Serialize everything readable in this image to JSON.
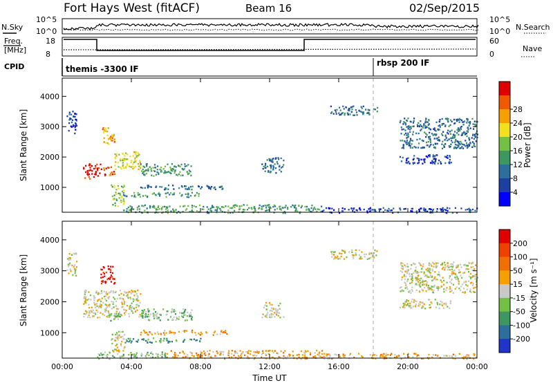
{
  "header": {
    "station": "Fort Hays West (fitACF)",
    "beam": "Beam 16",
    "date": "02/Sep/2015"
  },
  "summary": {
    "nsky_label": "N.Sky",
    "nsearch_label": "N.Search",
    "freq_label_line1": "Freq.",
    "freq_label_line2": "[MHz]",
    "nave_label": "Nave",
    "cpid_label": "CPID",
    "noise_ticks": [
      "10^5",
      "10^0"
    ],
    "freq_ticks": [
      "18",
      "8"
    ],
    "nave_ticks": [
      "60",
      "0"
    ],
    "cpid_segments": [
      {
        "label": "themis -3300 IF",
        "start_hour": 0
      },
      {
        "label": "rbsp 200 IF",
        "start_hour": 18
      }
    ]
  },
  "chart_data": [
    {
      "type": "heatmap",
      "name": "power",
      "xlabel": "",
      "ylabel": "Slant Range [km]",
      "xlim": [
        0,
        24
      ],
      "ylim": [
        180,
        4600
      ],
      "xticks": [
        0,
        4,
        8,
        12,
        16,
        20,
        24
      ],
      "yticks": [
        1000,
        2000,
        3000,
        4000
      ],
      "colorbar": {
        "label": "Power [dB]",
        "ticks": [
          "4",
          "8",
          "12",
          "16",
          "20",
          "24",
          "28"
        ],
        "colors": [
          "#0000ff",
          "#1c3fa0",
          "#2c6e9c",
          "#3f9660",
          "#74c045",
          "#f0e020",
          "#f6a000",
          "#ef5a00",
          "#e00000"
        ]
      },
      "regions": [
        {
          "h0": 0.25,
          "h1": 0.8,
          "r0": 2800,
          "r1": 3600,
          "level": 1
        },
        {
          "h0": 1.2,
          "h1": 2.2,
          "r0": 1300,
          "r1": 1800,
          "level": 8
        },
        {
          "h0": 2.2,
          "h1": 3.0,
          "r0": 1400,
          "r1": 1700,
          "level": 7
        },
        {
          "h0": 2.3,
          "h1": 3.0,
          "r0": 2400,
          "r1": 3000,
          "level": 6
        },
        {
          "h0": 3.0,
          "h1": 4.5,
          "r0": 1600,
          "r1": 2200,
          "level": 5
        },
        {
          "h0": 2.8,
          "h1": 3.6,
          "r0": 400,
          "r1": 1100,
          "level": 4
        },
        {
          "h0": 4.5,
          "h1": 7.5,
          "r0": 1400,
          "r1": 1800,
          "level": 3
        },
        {
          "h0": 4.5,
          "h1": 9.5,
          "r0": 950,
          "r1": 1100,
          "level": 2
        },
        {
          "h0": 3.5,
          "h1": 8.0,
          "r0": 700,
          "r1": 850,
          "level": 3
        },
        {
          "h0": 15.5,
          "h1": 18.2,
          "r0": 3400,
          "r1": 3700,
          "level": 2
        },
        {
          "h0": 19.5,
          "h1": 24.0,
          "r0": 2300,
          "r1": 3300,
          "level": 2
        },
        {
          "h0": 19.5,
          "h1": 22.5,
          "r0": 1800,
          "r1": 2100,
          "level": 1
        },
        {
          "h0": 11.5,
          "h1": 12.8,
          "r0": 1500,
          "r1": 2000,
          "level": 2
        },
        {
          "h0": 3.5,
          "h1": 15.0,
          "r0": 180,
          "r1": 450,
          "level": 3
        },
        {
          "h0": 15.0,
          "h1": 24.0,
          "r0": 180,
          "r1": 350,
          "level": 1
        }
      ]
    },
    {
      "type": "heatmap",
      "name": "velocity",
      "xlabel": "Time UT",
      "ylabel": "Slant Range [km]",
      "xlim": [
        0,
        24
      ],
      "ylim": [
        180,
        4600
      ],
      "xticks": [
        0,
        4,
        8,
        12,
        16,
        20,
        24
      ],
      "yticks": [
        1000,
        2000,
        3000,
        4000
      ],
      "colorbar": {
        "label": "Velocity [m s⁻¹]",
        "ticks": [
          "200",
          "100",
          "50",
          "15",
          "-15",
          "-50",
          "-100",
          "-200"
        ],
        "colors": [
          "#1f34c8",
          "#2c6e9c",
          "#3f9660",
          "#74c045",
          "#c8c8c8",
          "#f6a000",
          "#ef7000",
          "#ef4000",
          "#e00000"
        ]
      },
      "regions": [
        {
          "h0": 0.25,
          "h1": 0.8,
          "r0": 2800,
          "r1": 3600,
          "level": 4
        },
        {
          "h0": 2.2,
          "h1": 3.0,
          "r0": 2600,
          "r1": 3200,
          "level": 8
        },
        {
          "h0": 1.2,
          "h1": 4.5,
          "r0": 1500,
          "r1": 2400,
          "level": 4
        },
        {
          "h0": 2.6,
          "h1": 3.4,
          "r0": 1400,
          "r1": 1700,
          "level": 3
        },
        {
          "h0": 4.5,
          "h1": 7.5,
          "r0": 1400,
          "r1": 1800,
          "level": 3
        },
        {
          "h0": 4.5,
          "h1": 9.5,
          "r0": 950,
          "r1": 1100,
          "level": 5
        },
        {
          "h0": 3.5,
          "h1": 8.0,
          "r0": 700,
          "r1": 850,
          "level": 2
        },
        {
          "h0": 2.8,
          "h1": 3.6,
          "r0": 400,
          "r1": 1100,
          "level": 4
        },
        {
          "h0": 15.5,
          "h1": 18.2,
          "r0": 3400,
          "r1": 3700,
          "level": 4
        },
        {
          "h0": 19.5,
          "h1": 24.0,
          "r0": 2300,
          "r1": 3300,
          "level": 4
        },
        {
          "h0": 19.5,
          "h1": 22.5,
          "r0": 1800,
          "r1": 2100,
          "level": 4
        },
        {
          "h0": 11.5,
          "h1": 12.8,
          "r0": 1500,
          "r1": 2000,
          "level": 4
        },
        {
          "h0": 6.0,
          "h1": 15.0,
          "r0": 180,
          "r1": 450,
          "level": 5
        },
        {
          "h0": 2.0,
          "h1": 6.0,
          "r0": 180,
          "r1": 400,
          "level": 3
        },
        {
          "h0": 15.0,
          "h1": 24.0,
          "r0": 180,
          "r1": 350,
          "level": 5
        }
      ]
    }
  ],
  "x_tick_labels": [
    "00:00",
    "04:00",
    "08:00",
    "12:00",
    "16:00",
    "20:00",
    "00:00"
  ],
  "y_tick_labels": [
    "1000",
    "2000",
    "3000",
    "4000"
  ]
}
